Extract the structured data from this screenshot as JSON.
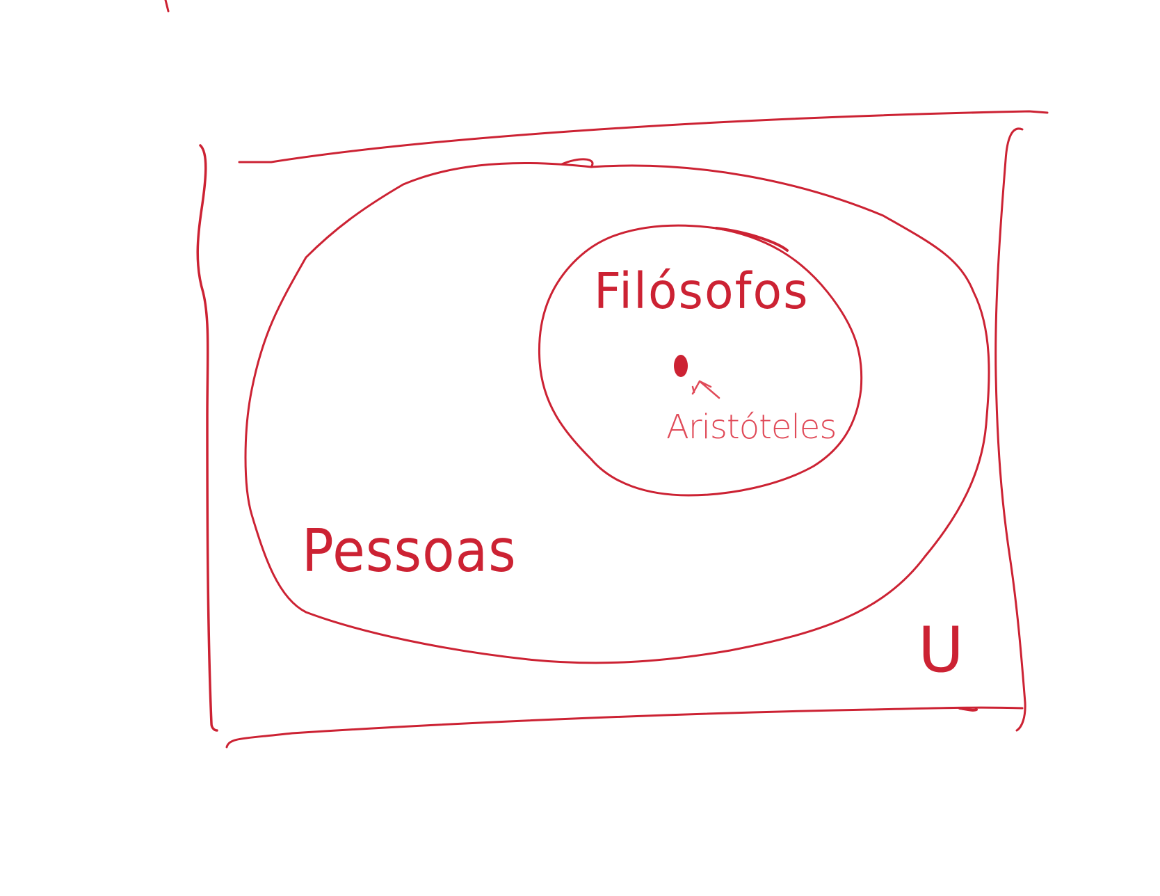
{
  "diagram": {
    "kind": "venn",
    "ink_color": "#cc2233",
    "light_ink_color": "#e04a58",
    "universe_label": "U",
    "outer_set_label": "Pessoas",
    "inner_set_label": "Filósofos",
    "element_label": "Aristóteles"
  }
}
